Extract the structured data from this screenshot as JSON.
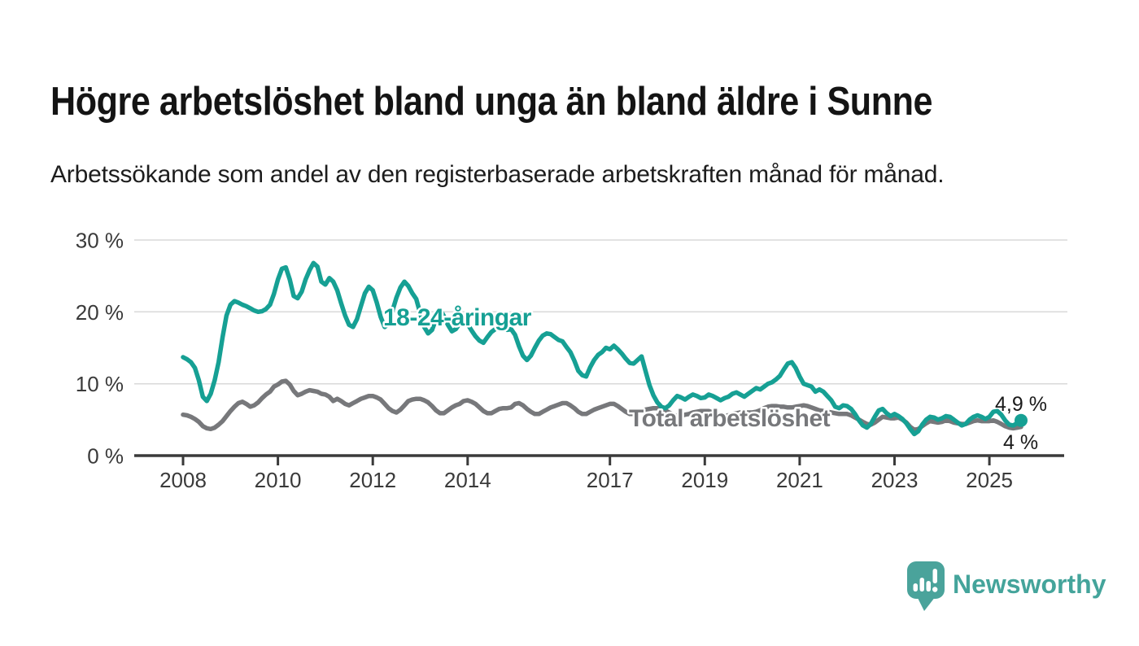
{
  "title": "Högre arbetslöshet bland unga än bland äldre i Sunne",
  "subtitle": "Arbetssökande som andel av den registerbaserade arbetskraften månad för månad.",
  "branding": {
    "logo_text": "Newsworthy",
    "logo_icon": "bar-chart-speech-bubble-icon"
  },
  "colors": {
    "youth_line": "#16a094",
    "total_line": "#77787b",
    "grid": "#d9d9d9",
    "axis": "#3a3a3a",
    "end_label_text": "#1a1a1a",
    "logo": "#4aa39b",
    "logo_text": "#44a49b"
  },
  "chart_data": {
    "type": "line",
    "unit": "%",
    "x_start_year": 2008,
    "x_interval": "monthly",
    "x_end": "2025-09",
    "ylim": [
      0,
      30
    ],
    "grid": "horizontal",
    "legend_position": "inline-labels",
    "x_tick_labels": [
      "2008",
      "2010",
      "2012",
      "2014",
      "2017",
      "2019",
      "2021",
      "2023",
      "2025"
    ],
    "x_tick_years": [
      2008,
      2010,
      2012,
      2014,
      2017,
      2019,
      2021,
      2023,
      2025
    ],
    "y_ticks": [
      "30 %",
      "20 %",
      "10 %",
      "0 %"
    ],
    "y_tick_values": [
      30,
      20,
      10,
      0
    ],
    "series": [
      {
        "name": "18-24-åringar",
        "color": "#16a094",
        "end_label": "4,9 %",
        "end_value": 4.9,
        "values": [
          13.7,
          13.4,
          13.0,
          12.2,
          10.5,
          8.2,
          7.6,
          8.6,
          10.5,
          13.0,
          16.5,
          19.5,
          21.0,
          21.5,
          21.3,
          21.0,
          20.8,
          20.5,
          20.2,
          20.0,
          20.1,
          20.4,
          21.0,
          22.5,
          24.5,
          26.0,
          26.2,
          24.5,
          22.2,
          21.9,
          22.8,
          24.5,
          25.8,
          26.8,
          26.3,
          24.2,
          23.8,
          24.7,
          24.2,
          23.0,
          21.2,
          19.5,
          18.2,
          17.9,
          19.0,
          20.8,
          22.6,
          23.5,
          23.0,
          21.3,
          19.3,
          17.9,
          18.3,
          20.2,
          22.0,
          23.4,
          24.2,
          23.6,
          22.6,
          21.8,
          19.8,
          17.9,
          17.0,
          17.5,
          19.0,
          20.4,
          19.4,
          18.2,
          17.3,
          17.6,
          18.4,
          18.8,
          18.3,
          17.4,
          16.6,
          16.0,
          15.7,
          16.5,
          17.2,
          17.6,
          17.9,
          17.8,
          17.5,
          17.6,
          16.8,
          15.2,
          13.9,
          13.3,
          13.9,
          15.0,
          16.0,
          16.7,
          17.0,
          16.9,
          16.5,
          16.1,
          15.9,
          15.1,
          14.4,
          13.2,
          11.8,
          11.2,
          11.0,
          12.3,
          13.3,
          14.0,
          14.4,
          15.0,
          14.8,
          15.3,
          14.8,
          14.2,
          13.5,
          12.9,
          12.8,
          13.3,
          13.8,
          11.8,
          9.8,
          8.4,
          7.4,
          6.8,
          6.6,
          7.0,
          7.7,
          8.3,
          8.1,
          7.8,
          8.2,
          8.5,
          8.3,
          8.0,
          8.1,
          8.5,
          8.3,
          8.0,
          7.7,
          8.0,
          8.2,
          8.6,
          8.8,
          8.5,
          8.2,
          8.6,
          9.0,
          9.4,
          9.2,
          9.6,
          10.0,
          10.2,
          10.6,
          11.1,
          12.0,
          12.8,
          13.0,
          12.2,
          11.0,
          10.0,
          9.8,
          9.6,
          8.9,
          9.2,
          8.9,
          8.3,
          7.7,
          6.8,
          6.6,
          7.0,
          6.9,
          6.5,
          5.8,
          4.9,
          4.2,
          3.9,
          4.4,
          5.4,
          6.3,
          6.5,
          5.9,
          5.5,
          5.8,
          5.5,
          5.1,
          4.5,
          3.7,
          3.0,
          3.4,
          4.3,
          5.0,
          5.4,
          5.3,
          5.0,
          5.2,
          5.5,
          5.4,
          5.0,
          4.6,
          4.2,
          4.4,
          5.0,
          5.4,
          5.6,
          5.4,
          5.1,
          5.4,
          6.1,
          6.2,
          5.7,
          4.9,
          4.3,
          4.2,
          4.5,
          4.9
        ]
      },
      {
        "name": "Total arbetslöshet",
        "color": "#77787b",
        "end_label": "4 %",
        "end_value": 4.0,
        "values": [
          5.7,
          5.6,
          5.4,
          5.1,
          4.7,
          4.1,
          3.8,
          3.7,
          3.9,
          4.3,
          4.8,
          5.5,
          6.2,
          6.8,
          7.3,
          7.5,
          7.2,
          6.8,
          7.0,
          7.4,
          8.0,
          8.5,
          8.9,
          9.6,
          9.9,
          10.3,
          10.4,
          9.9,
          9.0,
          8.4,
          8.6,
          8.9,
          9.1,
          9.0,
          8.9,
          8.6,
          8.5,
          8.2,
          7.6,
          7.9,
          7.6,
          7.2,
          7.0,
          7.3,
          7.6,
          7.9,
          8.1,
          8.3,
          8.3,
          8.1,
          7.8,
          7.2,
          6.6,
          6.2,
          6.0,
          6.4,
          7.0,
          7.6,
          7.8,
          7.9,
          7.9,
          7.7,
          7.4,
          6.9,
          6.3,
          5.9,
          5.9,
          6.3,
          6.7,
          7.0,
          7.2,
          7.6,
          7.7,
          7.5,
          7.2,
          6.7,
          6.2,
          5.9,
          5.9,
          6.2,
          6.5,
          6.6,
          6.6,
          6.7,
          7.2,
          7.3,
          7.0,
          6.5,
          6.1,
          5.8,
          5.8,
          6.1,
          6.4,
          6.7,
          6.9,
          7.1,
          7.3,
          7.3,
          7.0,
          6.6,
          6.1,
          5.8,
          5.8,
          6.1,
          6.4,
          6.6,
          6.8,
          7.0,
          7.2,
          7.2,
          6.9,
          6.5,
          6.1,
          5.8,
          5.8,
          6.0,
          6.2,
          6.4,
          6.5,
          6.6,
          6.6,
          6.5,
          6.3,
          6.0,
          5.7,
          5.5,
          5.5,
          5.7,
          5.8,
          6.0,
          6.1,
          6.2,
          6.2,
          6.2,
          6.0,
          5.8,
          5.6,
          5.5,
          5.6,
          5.8,
          5.9,
          6.0,
          6.0,
          6.0,
          6.0,
          6.1,
          6.3,
          6.6,
          6.8,
          6.9,
          6.9,
          6.8,
          6.8,
          6.7,
          6.7,
          6.8,
          6.9,
          7.0,
          6.9,
          6.7,
          6.5,
          6.3,
          6.2,
          6.1,
          6.0,
          5.9,
          5.8,
          5.8,
          5.8,
          5.6,
          5.3,
          5.0,
          4.7,
          4.4,
          4.3,
          4.6,
          5.0,
          5.4,
          5.3,
          5.2,
          5.2,
          5.3,
          5.0,
          4.6,
          4.0,
          3.6,
          3.7,
          4.1,
          4.5,
          4.8,
          4.7,
          4.6,
          4.7,
          4.9,
          4.8,
          4.6,
          4.5,
          4.4,
          4.4,
          4.6,
          4.8,
          4.9,
          4.8,
          4.8,
          4.8,
          4.9,
          4.7,
          4.4,
          4.1,
          3.9,
          3.8,
          3.9,
          4.0
        ]
      }
    ]
  }
}
